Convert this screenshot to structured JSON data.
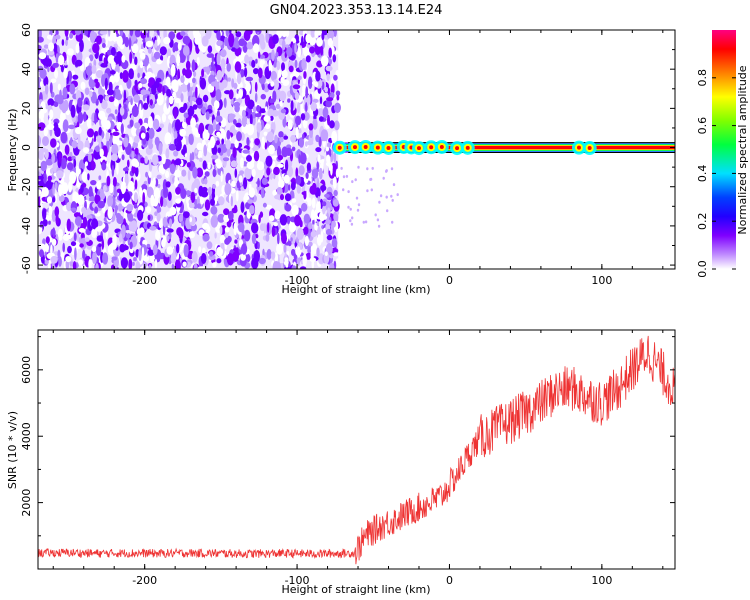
{
  "title": "GN04.2023.353.13.14.E24",
  "chart_data": [
    {
      "type": "heatmap",
      "xlabel": "Height of straight line (km)",
      "ylabel": "Frequency (Hz)",
      "xlim": [
        -270,
        148
      ],
      "ylim": [
        -62,
        60
      ],
      "xticks": [
        -200,
        -100,
        0,
        100
      ],
      "yticks": [
        -60,
        -40,
        -20,
        0,
        20,
        40,
        60
      ],
      "colorbar": {
        "label": "Normalized spectral amplitude",
        "range": [
          0,
          1
        ],
        "ticks": [
          "0.0",
          "0.2",
          "0.4",
          "0.6",
          "0.8"
        ],
        "colors": [
          "#ffffff",
          "#7f00ff",
          "#0000ff",
          "#00ffff",
          "#00ff00",
          "#ffff00",
          "#ff0000",
          "#ff0080"
        ]
      },
      "regions": [
        {
          "name": "noise",
          "x": [
            -270,
            -73
          ],
          "freq": [
            -62,
            60
          ],
          "amplitude_typical": 0.1
        },
        {
          "name": "signal_band",
          "x": [
            -73,
            148
          ],
          "freq": [
            -2,
            2
          ],
          "amplitude_peak": 1.0
        }
      ]
    },
    {
      "type": "line",
      "xlabel": "Height of straight line (km)",
      "ylabel": "SNR (10 * v/v)",
      "xlim": [
        -270,
        148
      ],
      "ylim": [
        0,
        7200
      ],
      "xticks": [
        -200,
        -100,
        0,
        100
      ],
      "yticks": [
        2000,
        4000,
        6000
      ],
      "color": "#ee3333",
      "series": [
        {
          "x": [
            -270,
            -250,
            -230,
            -210,
            -190,
            -170,
            -150,
            -130,
            -110,
            -90,
            -70,
            -62,
            -55,
            -45,
            -35,
            -25,
            -15,
            -5,
            5,
            12,
            20,
            30,
            40,
            50,
            60,
            70,
            80,
            90,
            100,
            110,
            120,
            130,
            140,
            148
          ],
          "y": [
            480,
            490,
            470,
            480,
            470,
            480,
            470,
            460,
            470,
            460,
            470,
            480,
            1000,
            1300,
            1500,
            1750,
            1950,
            2200,
            2850,
            3400,
            3950,
            4200,
            4450,
            4700,
            5000,
            5350,
            5450,
            5200,
            5000,
            5400,
            6000,
            6550,
            5900,
            5350
          ]
        }
      ]
    }
  ]
}
